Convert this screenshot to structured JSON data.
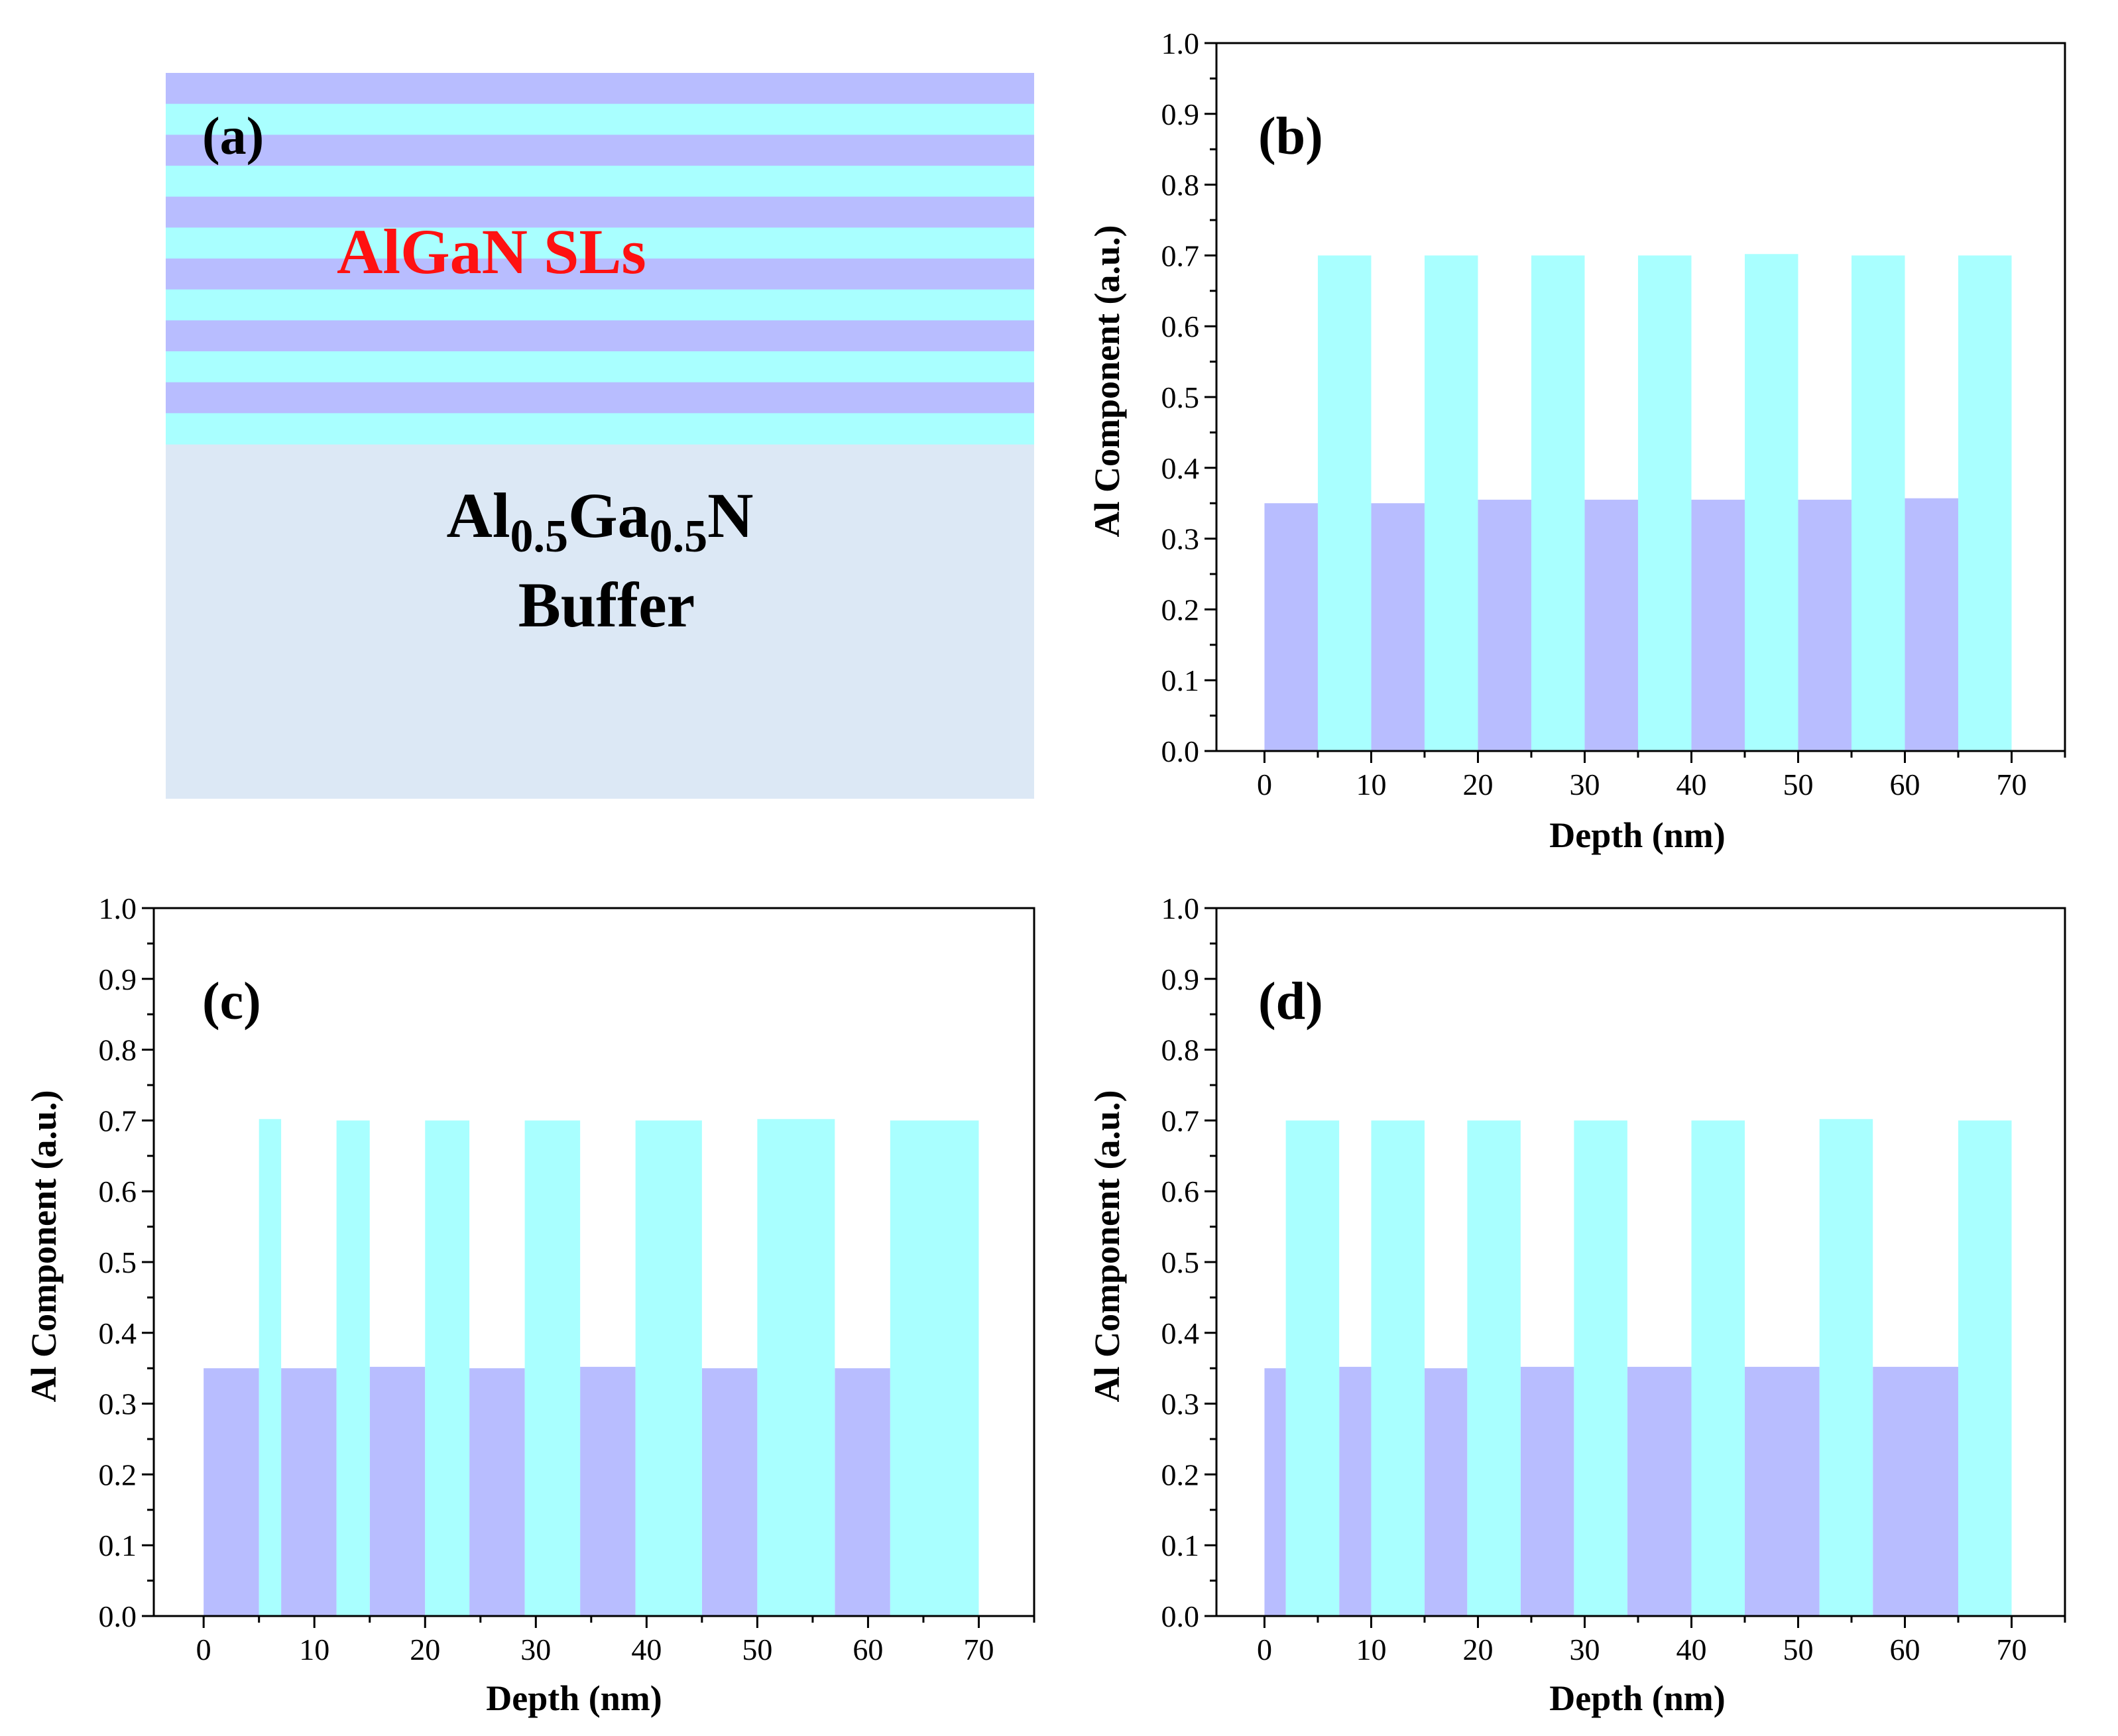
{
  "colors": {
    "barrier": "#a9ffff",
    "well": "#b8bdff",
    "buffer": "#dce8f5",
    "sls_label": "#ff1111"
  },
  "schematic": {
    "panel_label": "(a)",
    "sls_label": "AlGaN SLs",
    "buffer_line1_parts": [
      "Al",
      "0.5",
      "Ga",
      "0.5",
      "N"
    ],
    "buffer_line2": "Buffer",
    "stack_from_top": [
      "well",
      "barrier",
      "well",
      "barrier",
      "well",
      "barrier",
      "well",
      "barrier",
      "well",
      "barrier",
      "well",
      "barrier"
    ]
  },
  "chart_data": [
    {
      "id": "b",
      "type": "bar",
      "panel_label": "(b)",
      "xlabel": "Depth (nm)",
      "ylabel": "Al Component (a.u.)",
      "xlim": [
        -4.5,
        75
      ],
      "ylim": [
        0,
        1.0
      ],
      "xticks": [
        0,
        10,
        20,
        30,
        40,
        50,
        60,
        70
      ],
      "yticks": [
        0.0,
        0.1,
        0.2,
        0.3,
        0.4,
        0.5,
        0.6,
        0.7,
        0.8,
        0.9,
        1.0
      ],
      "series": [
        {
          "name": "well",
          "color_key": "well",
          "segments": [
            {
              "x0": 0,
              "x1": 5,
              "value": 0.35
            },
            {
              "x0": 10,
              "x1": 15,
              "value": 0.35
            },
            {
              "x0": 20,
              "x1": 25,
              "value": 0.355
            },
            {
              "x0": 30,
              "x1": 35,
              "value": 0.355
            },
            {
              "x0": 40,
              "x1": 45,
              "value": 0.355
            },
            {
              "x0": 50,
              "x1": 55,
              "value": 0.355
            },
            {
              "x0": 60,
              "x1": 65,
              "value": 0.357
            }
          ]
        },
        {
          "name": "barrier",
          "color_key": "barrier",
          "segments": [
            {
              "x0": 5,
              "x1": 10,
              "value": 0.7
            },
            {
              "x0": 15,
              "x1": 20,
              "value": 0.7
            },
            {
              "x0": 25,
              "x1": 30,
              "value": 0.7
            },
            {
              "x0": 35,
              "x1": 40,
              "value": 0.7
            },
            {
              "x0": 45,
              "x1": 50,
              "value": 0.702
            },
            {
              "x0": 55,
              "x1": 60,
              "value": 0.7
            },
            {
              "x0": 65,
              "x1": 70,
              "value": 0.7
            }
          ]
        }
      ]
    },
    {
      "id": "c",
      "type": "bar",
      "panel_label": "(c)",
      "xlabel": "Depth (nm)",
      "ylabel": "Al Component (a.u.)",
      "xlim": [
        -4.5,
        75
      ],
      "ylim": [
        0,
        1.0
      ],
      "xticks": [
        0,
        10,
        20,
        30,
        40,
        50,
        60,
        70
      ],
      "yticks": [
        0.0,
        0.1,
        0.2,
        0.3,
        0.4,
        0.5,
        0.6,
        0.7,
        0.8,
        0.9,
        1.0
      ],
      "series": [
        {
          "name": "well",
          "color_key": "well",
          "segments": [
            {
              "x0": 0,
              "x1": 5,
              "value": 0.35
            },
            {
              "x0": 7,
              "x1": 12,
              "value": 0.35
            },
            {
              "x0": 15,
              "x1": 20,
              "value": 0.352
            },
            {
              "x0": 24,
              "x1": 29,
              "value": 0.35
            },
            {
              "x0": 34,
              "x1": 39,
              "value": 0.352
            },
            {
              "x0": 45,
              "x1": 50,
              "value": 0.35
            },
            {
              "x0": 57,
              "x1": 62,
              "value": 0.35
            }
          ]
        },
        {
          "name": "barrier",
          "color_key": "barrier",
          "segments": [
            {
              "x0": 5,
              "x1": 7,
              "value": 0.702
            },
            {
              "x0": 12,
              "x1": 15,
              "value": 0.7
            },
            {
              "x0": 20,
              "x1": 24,
              "value": 0.7
            },
            {
              "x0": 29,
              "x1": 34,
              "value": 0.7
            },
            {
              "x0": 39,
              "x1": 45,
              "value": 0.7
            },
            {
              "x0": 50,
              "x1": 57,
              "value": 0.702
            },
            {
              "x0": 62,
              "x1": 70,
              "value": 0.7
            }
          ]
        }
      ]
    },
    {
      "id": "d",
      "type": "bar",
      "panel_label": "(d)",
      "xlabel": "Depth (nm)",
      "ylabel": "Al Component (a.u.)",
      "xlim": [
        -4.5,
        75
      ],
      "ylim": [
        0,
        1.0
      ],
      "xticks": [
        0,
        10,
        20,
        30,
        40,
        50,
        60,
        70
      ],
      "yticks": [
        0.0,
        0.1,
        0.2,
        0.3,
        0.4,
        0.5,
        0.6,
        0.7,
        0.8,
        0.9,
        1.0
      ],
      "series": [
        {
          "name": "well",
          "color_key": "well",
          "segments": [
            {
              "x0": 0,
              "x1": 2,
              "value": 0.35
            },
            {
              "x0": 7,
              "x1": 10,
              "value": 0.352
            },
            {
              "x0": 15,
              "x1": 19,
              "value": 0.35
            },
            {
              "x0": 24,
              "x1": 29,
              "value": 0.352
            },
            {
              "x0": 34,
              "x1": 40,
              "value": 0.352
            },
            {
              "x0": 45,
              "x1": 52,
              "value": 0.352
            },
            {
              "x0": 57,
              "x1": 65,
              "value": 0.352
            }
          ]
        },
        {
          "name": "barrier",
          "color_key": "barrier",
          "segments": [
            {
              "x0": 2,
              "x1": 7,
              "value": 0.7
            },
            {
              "x0": 10,
              "x1": 15,
              "value": 0.7
            },
            {
              "x0": 19,
              "x1": 24,
              "value": 0.7
            },
            {
              "x0": 29,
              "x1": 34,
              "value": 0.7
            },
            {
              "x0": 40,
              "x1": 45,
              "value": 0.7
            },
            {
              "x0": 52,
              "x1": 57,
              "value": 0.702
            },
            {
              "x0": 65,
              "x1": 70,
              "value": 0.7
            }
          ]
        }
      ]
    }
  ]
}
